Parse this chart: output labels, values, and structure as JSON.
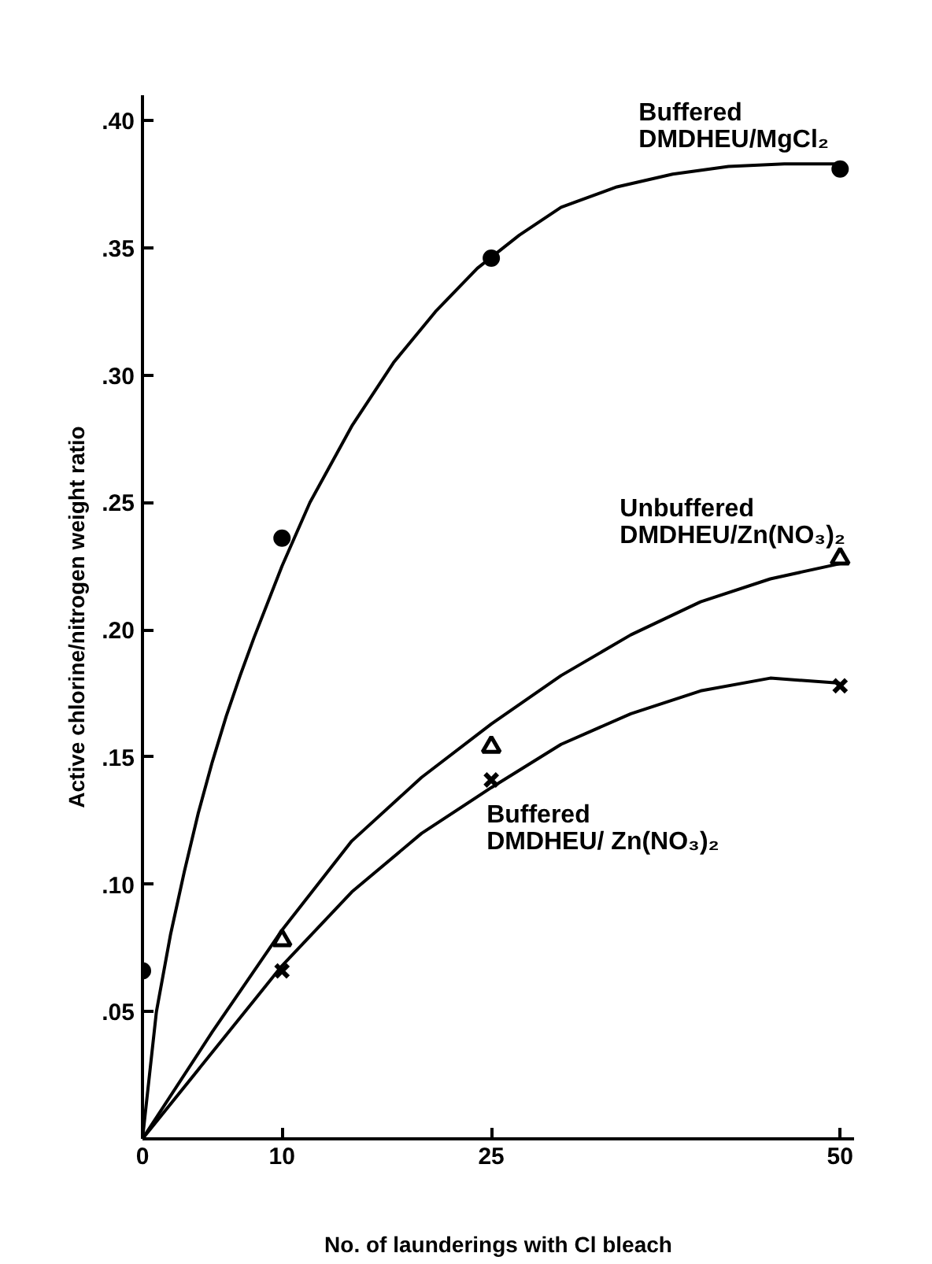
{
  "chart_data": {
    "type": "scatter",
    "xlabel": "No. of launderings with Cl bleach",
    "ylabel": "Active chlorine/nitrogen weight ratio",
    "xlim": [
      0,
      51
    ],
    "ylim": [
      0,
      0.41
    ],
    "xticks": [
      0,
      10,
      25,
      50
    ],
    "yticks": [
      {
        "value": 0.05,
        "label": ".05"
      },
      {
        "value": 0.1,
        "label": ".10"
      },
      {
        "value": 0.15,
        "label": ".15"
      },
      {
        "value": 0.2,
        "label": ".20"
      },
      {
        "value": 0.25,
        "label": ".25"
      },
      {
        "value": 0.3,
        "label": ".30"
      },
      {
        "value": 0.35,
        "label": ".35"
      },
      {
        "value": 0.4,
        "label": ".40"
      }
    ],
    "grid": false,
    "series": [
      {
        "name": "Buffered\nDMDHEU/MgCl₂",
        "marker": "circle",
        "color": "#000000",
        "x": [
          0,
          10,
          25,
          50
        ],
        "values": [
          0.066,
          0.236,
          0.346,
          0.381
        ]
      },
      {
        "name": "Unbuffered\nDMDHEU/Zn(NO₃)₂",
        "marker": "triangle",
        "color": "#000000",
        "x": [
          10,
          25,
          50
        ],
        "values": [
          0.078,
          0.154,
          0.228
        ]
      },
      {
        "name": "Buffered\nDMDHEU/ Zn(NO₃)₂",
        "marker": "cross",
        "color": "#000000",
        "x": [
          10,
          25,
          50
        ],
        "values": [
          0.066,
          0.141,
          0.178
        ]
      },
      {
        "type": "line",
        "color": "#000000",
        "x": [
          0,
          1,
          2,
          3,
          4,
          5,
          6,
          7,
          8,
          10,
          12,
          15,
          18,
          21,
          24,
          27,
          30,
          34,
          38,
          42,
          46,
          50
        ],
        "values": [
          0,
          0.05,
          0.08,
          0.105,
          0.128,
          0.148,
          0.166,
          0.182,
          0.197,
          0.225,
          0.25,
          0.28,
          0.305,
          0.325,
          0.342,
          0.355,
          0.366,
          0.374,
          0.379,
          0.382,
          0.383,
          0.383
        ]
      },
      {
        "type": "line",
        "color": "#000000",
        "x": [
          0,
          5,
          10,
          15,
          20,
          25,
          30,
          35,
          40,
          45,
          50
        ],
        "values": [
          0,
          0.042,
          0.082,
          0.117,
          0.142,
          0.163,
          0.182,
          0.198,
          0.211,
          0.22,
          0.226
        ]
      },
      {
        "type": "line",
        "color": "#000000",
        "x": [
          0,
          5,
          10,
          15,
          20,
          25,
          30,
          35,
          40,
          45,
          50
        ],
        "values": [
          0,
          0.034,
          0.068,
          0.097,
          0.12,
          0.138,
          0.155,
          0.167,
          0.176,
          0.181,
          0.179
        ]
      }
    ]
  }
}
